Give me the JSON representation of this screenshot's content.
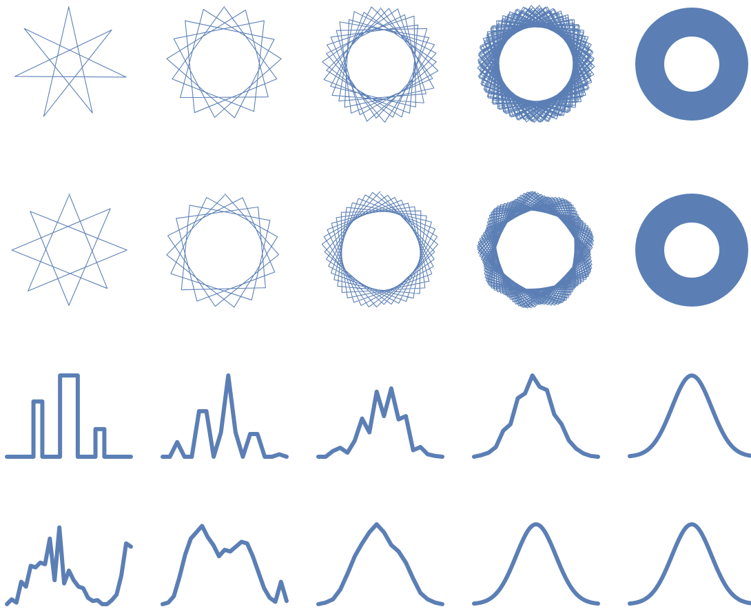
{
  "figure": {
    "line_color": "#5b7fb5",
    "background": "#ffffff",
    "rows": [
      {
        "kind": "star-polygon",
        "panels": [
          {
            "points": 7,
            "skip": 3,
            "turns": 1.35
          },
          {
            "points": 17,
            "skip": 5,
            "turns": 1.6
          },
          {
            "points": 41,
            "skip": 12,
            "turns": 1.8
          },
          {
            "points": 230,
            "skip": 61,
            "turns": 1.9
          },
          {
            "points": 0,
            "skip": 0,
            "turns": 0,
            "filled": true
          }
        ]
      },
      {
        "kind": "star-polygon",
        "panels": [
          {
            "points": 8,
            "skip": 3,
            "turns": 1.25
          },
          {
            "points": 19,
            "skip": 5,
            "turns": 1.6
          },
          {
            "points": 47,
            "skip": 12,
            "turns": 1.8
          },
          {
            "points": 210,
            "skip": 53,
            "turns": 1.9
          },
          {
            "points": 0,
            "skip": 0,
            "turns": 0,
            "filled": true
          }
        ]
      },
      {
        "kind": "distribution-curve",
        "panels": [
          {
            "step": true,
            "values": [
              0,
              0,
              0,
              0.68,
              0,
              0,
              1,
              1,
              0,
              0,
              0.34,
              0,
              0,
              0
            ]
          },
          {
            "values": [
              0,
              0,
              0.18,
              0,
              0,
              0.56,
              0.56,
              0,
              0.3,
              1,
              0.3,
              0,
              0.28,
              0.28,
              0,
              0,
              0.03,
              0
            ]
          },
          {
            "values": [
              0,
              0,
              0.07,
              0.11,
              0.05,
              0.2,
              0.47,
              0.3,
              0.8,
              0.5,
              0.84,
              0.46,
              0.5,
              0.08,
              0.12,
              0.03,
              0.01,
              0
            ]
          },
          {
            "values": [
              0,
              0.02,
              0.05,
              0.12,
              0.32,
              0.4,
              0.72,
              0.78,
              1.0,
              0.86,
              0.82,
              0.52,
              0.4,
              0.2,
              0.1,
              0.04,
              0.01,
              0
            ]
          },
          {
            "gaussian": true,
            "mean": 0.5,
            "sd": 0.16
          }
        ]
      },
      {
        "kind": "distribution-curve",
        "panels": [
          {
            "values": [
              0,
              0.06,
              0.02,
              0.28,
              0.22,
              0.48,
              0.46,
              0.52,
              0.5,
              0.82,
              0.3,
              0.96,
              0.26,
              0.42,
              0.3,
              0.22,
              0.2,
              0.08,
              0.04,
              0.05,
              0,
              0,
              0.05,
              0.12,
              0.36,
              0.76,
              0.72
            ]
          },
          {
            "values": [
              0,
              0.02,
              0.1,
              0.34,
              0.62,
              0.82,
              0.9,
              0.98,
              0.84,
              0.74,
              0.6,
              0.68,
              0.66,
              0.72,
              0.78,
              0.76,
              0.6,
              0.4,
              0.2,
              0.08,
              0.03,
              0.28,
              0.04
            ]
          },
          {
            "values": [
              0,
              0.02,
              0.06,
              0.18,
              0.38,
              0.6,
              0.76,
              0.9,
              1.0,
              0.9,
              0.74,
              0.66,
              0.52,
              0.32,
              0.14,
              0.06,
              0.02,
              0
            ]
          },
          {
            "gaussian": true,
            "mean": 0.5,
            "sd": 0.16
          },
          {
            "gaussian": true,
            "mean": 0.5,
            "sd": 0.16
          }
        ]
      }
    ]
  }
}
